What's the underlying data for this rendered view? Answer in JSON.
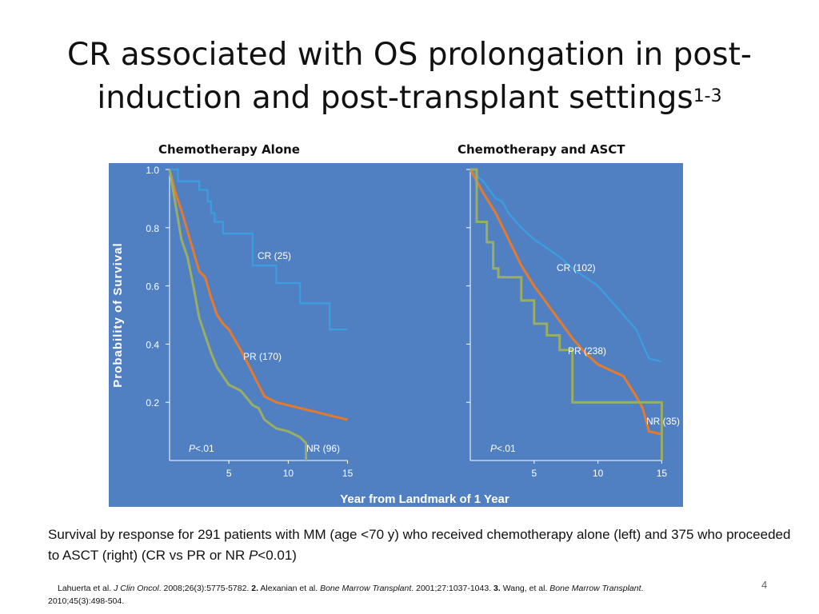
{
  "slide": {
    "title_main": "CR associated with OS prolongation in post-induction and post-transplant settings",
    "title_sup": "1-3",
    "page_number": "4"
  },
  "caption": {
    "text_a": "Survival by response for 291 patients with MM (age <70 y) who received chemotherapy alone (left) and 375 who proceeded to ASCT (right) (CR vs PR or NR ",
    "p_italic": "P",
    "text_b": "<0.01)"
  },
  "references": {
    "r1_authors": "Lahuerta et al. ",
    "r1_journal": "J Clin Oncol",
    "r1_details": ". 2008;26(3):5775-5782. ",
    "r2_num": "2.",
    "r2_authors": " Alexanian et al. ",
    "r2_journal": "Bone Marrow Transplant",
    "r2_details": ". 2001;27:1037-1043. ",
    "r3_num": "3.",
    "r3_authors": " Wang, et al. ",
    "r3_journal": "Bone Marrow Transplant",
    "r3_details": ".",
    "r3_year": "2010;45(3):498-504."
  },
  "colors": {
    "background": "#5080c2",
    "cr": "#3a9ee0",
    "pr": "#e57a2c",
    "nr": "#9aad63",
    "axis_text": "#ffffff"
  },
  "shared_axes": {
    "ylabel": "Probability of Survival",
    "xlabel": "Year from Landmark of 1 Year",
    "yticks": [
      "1.0",
      "0.8",
      "0.6",
      "0.4",
      "0.2"
    ],
    "xticks": [
      "5",
      "10",
      "15"
    ]
  },
  "chart_data": [
    {
      "type": "line",
      "title": "Chemotherapy Alone",
      "xlim": [
        0,
        15.5
      ],
      "ylim": [
        0,
        1.0
      ],
      "pvalue": "<.01",
      "series": [
        {
          "name": "CR (25)",
          "color": "#3a9ee0",
          "x": [
            0,
            0.7,
            0.7,
            2.5,
            2.5,
            3.2,
            3.2,
            3.5,
            3.5,
            3.8,
            3.8,
            4.5,
            4.5,
            7,
            7,
            9,
            9,
            11,
            11,
            13.5,
            13.5,
            15
          ],
          "y": [
            1.0,
            1.0,
            0.96,
            0.96,
            0.93,
            0.93,
            0.89,
            0.89,
            0.85,
            0.85,
            0.82,
            0.82,
            0.78,
            0.78,
            0.67,
            0.67,
            0.61,
            0.61,
            0.54,
            0.54,
            0.45,
            0.45
          ]
        },
        {
          "name": "PR (170)",
          "color": "#e57a2c",
          "x": [
            0,
            0.5,
            1,
            1.5,
            2,
            2.5,
            3,
            3.5,
            4,
            4.5,
            5,
            6,
            7,
            8,
            9,
            10,
            11,
            12,
            13,
            14,
            15
          ],
          "y": [
            1.0,
            0.92,
            0.86,
            0.79,
            0.72,
            0.65,
            0.63,
            0.56,
            0.5,
            0.47,
            0.45,
            0.38,
            0.3,
            0.22,
            0.2,
            0.19,
            0.18,
            0.17,
            0.16,
            0.15,
            0.14
          ]
        },
        {
          "name": "NR (96)",
          "color": "#9aad63",
          "x": [
            0,
            0.5,
            1,
            1.5,
            2,
            2.5,
            3,
            3.5,
            4,
            5,
            6,
            7,
            7.5,
            8,
            9,
            10,
            11,
            11.5,
            11.5
          ],
          "y": [
            1.0,
            0.88,
            0.76,
            0.7,
            0.6,
            0.49,
            0.43,
            0.37,
            0.32,
            0.26,
            0.24,
            0.19,
            0.18,
            0.14,
            0.11,
            0.1,
            0.08,
            0.06,
            0.0
          ]
        }
      ]
    },
    {
      "type": "line",
      "title": "Chemotherapy and ASCT",
      "xlim": [
        0,
        15.5
      ],
      "ylim": [
        0,
        1.0
      ],
      "pvalue": "<.01",
      "series": [
        {
          "name": "CR (102)",
          "color": "#3a9ee0",
          "x": [
            0,
            1,
            1.5,
            2,
            2.5,
            3,
            4,
            5,
            6,
            7,
            8,
            9,
            10,
            11,
            12,
            13,
            14,
            15
          ],
          "y": [
            1.0,
            0.96,
            0.93,
            0.9,
            0.89,
            0.85,
            0.8,
            0.76,
            0.73,
            0.7,
            0.66,
            0.63,
            0.6,
            0.55,
            0.5,
            0.45,
            0.35,
            0.34
          ]
        },
        {
          "name": "PR (238)",
          "color": "#e57a2c",
          "x": [
            0,
            1,
            2,
            3,
            4,
            5,
            6,
            7,
            8,
            9,
            10,
            11,
            12,
            13,
            13.5,
            14,
            15
          ],
          "y": [
            1.0,
            0.92,
            0.85,
            0.76,
            0.67,
            0.6,
            0.54,
            0.48,
            0.42,
            0.37,
            0.33,
            0.31,
            0.29,
            0.22,
            0.18,
            0.1,
            0.09
          ]
        },
        {
          "name": "NR (35)",
          "color": "#9aad63",
          "x": [
            0,
            0.5,
            0.5,
            1.3,
            1.3,
            1.8,
            1.8,
            2.2,
            2.2,
            4,
            4,
            5,
            5,
            6,
            6,
            7,
            7,
            8,
            8,
            15,
            15
          ],
          "y": [
            1.0,
            1.0,
            0.82,
            0.82,
            0.75,
            0.75,
            0.66,
            0.66,
            0.63,
            0.63,
            0.55,
            0.55,
            0.47,
            0.47,
            0.43,
            0.43,
            0.38,
            0.38,
            0.2,
            0.2,
            0.0
          ]
        }
      ]
    }
  ]
}
